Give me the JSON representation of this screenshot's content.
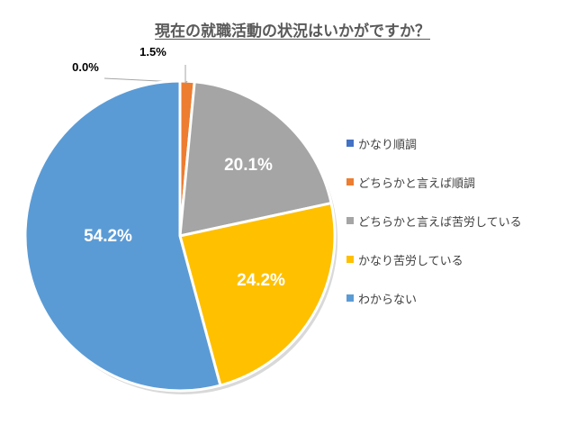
{
  "chart_data": {
    "type": "pie",
    "title": "現在の就職活動の状況はいかがですか？",
    "categories": [
      "かなり順調",
      "どちらかと言えば順調",
      "どちらかと言えば苦労している",
      "かなり苦労している",
      "わからない"
    ],
    "values": [
      0.0,
      1.5,
      20.1,
      24.2,
      54.2
    ],
    "data_labels": [
      "0.0%",
      "1.5%",
      "20.1%",
      "24.2%",
      "54.2%"
    ],
    "colors": [
      "#4472C4",
      "#ED7D31",
      "#A5A5A5",
      "#FFC000",
      "#5B9BD5"
    ],
    "legend_position": "right",
    "start_angle_deg": 0,
    "direction": "clockwise"
  }
}
